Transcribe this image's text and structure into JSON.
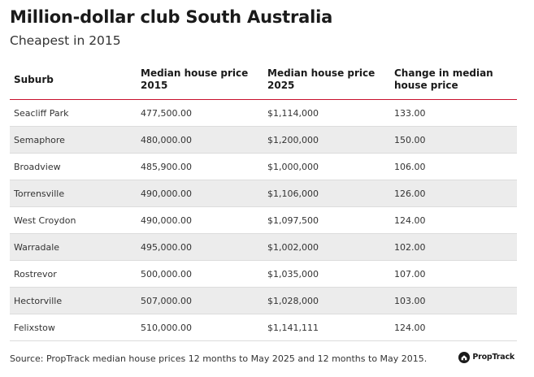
{
  "title": "Million-dollar club South Australia",
  "subtitle": "Cheapest in 2015",
  "table": {
    "headers": [
      "Suburb",
      "Median house price 2015",
      "Median house price 2025",
      "Change in median house price"
    ],
    "rows": [
      [
        "Seacliff Park",
        "477,500.00",
        "$1,114,000",
        "133.00"
      ],
      [
        "Semaphore",
        "480,000.00",
        "$1,200,000",
        "150.00"
      ],
      [
        "Broadview",
        "485,900.00",
        "$1,000,000",
        "106.00"
      ],
      [
        "Torrensville",
        "490,000.00",
        "$1,106,000",
        "126.00"
      ],
      [
        "West Croydon",
        "490,000.00",
        "$1,097,500",
        "124.00"
      ],
      [
        "Warradale",
        "495,000.00",
        "$1,002,000",
        "102.00"
      ],
      [
        "Rostrevor",
        "500,000.00",
        "$1,035,000",
        "107.00"
      ],
      [
        "Hectorville",
        "507,000.00",
        "$1,028,000",
        "103.00"
      ],
      [
        "Felixstow",
        "510,000.00",
        "$1,141,111",
        "124.00"
      ]
    ]
  },
  "source": "Source: PropTrack median house prices 12 months to May 2025 and 12 months to May 2015.",
  "brand": {
    "name": "PropTrack",
    "icon": "proptrack-logo-icon"
  },
  "colors": {
    "header_rule": "#c8102e",
    "row_stripe": "#ececec"
  }
}
